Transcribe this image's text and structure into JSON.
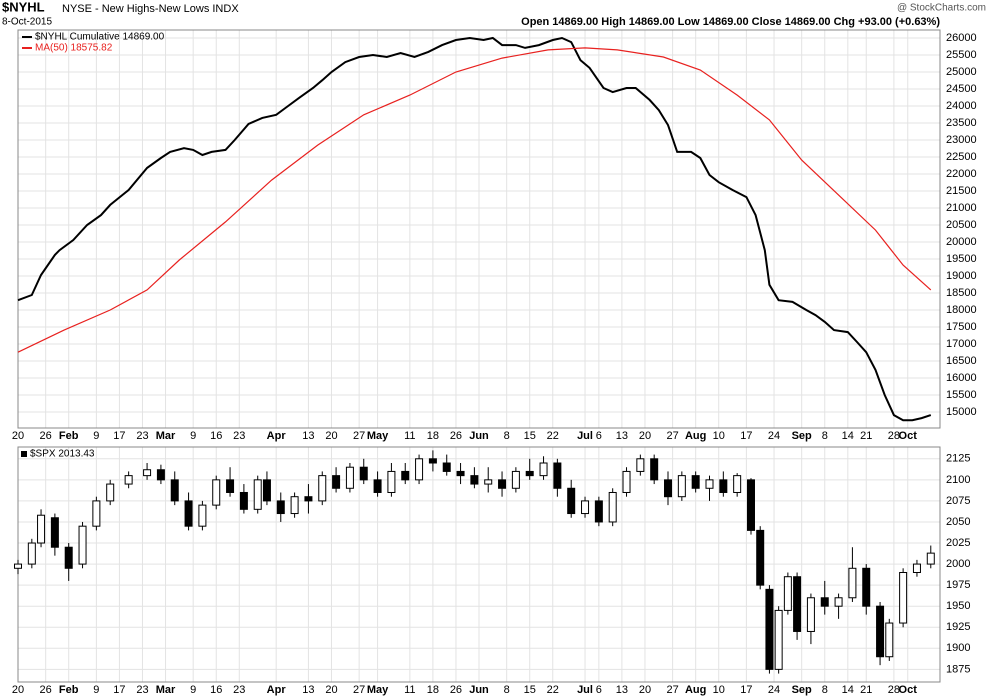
{
  "header": {
    "symbol": "$NYHL",
    "name": "NYSE - New Highs-New Lows INDX",
    "date": "8-Oct-2015",
    "quote": "Open 14869.00  High 14869.00  Low 14869.00  Close 14869.00  Chg +93.00 (+0.63%)",
    "credit": "@ StockCharts.com"
  },
  "chart_data": [
    {
      "type": "line",
      "xlim": [
        0,
        200
      ],
      "ylim": [
        14530,
        26235
      ],
      "grid": true,
      "yticks": [
        15000,
        15500,
        16000,
        16500,
        17000,
        17500,
        18000,
        18500,
        19000,
        19500,
        20000,
        20500,
        21000,
        21500,
        22000,
        22500,
        23000,
        23500,
        24000,
        24500,
        25000,
        25500,
        26000
      ],
      "xticks": [
        {
          "value": 0,
          "label": "20"
        },
        {
          "value": 6,
          "label": "26"
        },
        {
          "value": 11,
          "label": "Feb"
        },
        {
          "value": 17,
          "label": "9"
        },
        {
          "value": 22,
          "label": "17"
        },
        {
          "value": 27,
          "label": "23"
        },
        {
          "value": 32,
          "label": "Mar"
        },
        {
          "value": 38,
          "label": "9"
        },
        {
          "value": 43,
          "label": "16"
        },
        {
          "value": 48,
          "label": "23"
        },
        {
          "value": 56,
          "label": "Apr"
        },
        {
          "value": 63,
          "label": "13"
        },
        {
          "value": 68,
          "label": "20"
        },
        {
          "value": 74,
          "label": "27"
        },
        {
          "value": 78,
          "label": "May"
        },
        {
          "value": 85,
          "label": "11"
        },
        {
          "value": 90,
          "label": "18"
        },
        {
          "value": 95,
          "label": "26"
        },
        {
          "value": 100,
          "label": "Jun"
        },
        {
          "value": 106,
          "label": "8"
        },
        {
          "value": 111,
          "label": "15"
        },
        {
          "value": 116,
          "label": "22"
        },
        {
          "value": 123,
          "label": "Jul"
        },
        {
          "value": 126,
          "label": "6"
        },
        {
          "value": 131,
          "label": "13"
        },
        {
          "value": 136,
          "label": "20"
        },
        {
          "value": 142,
          "label": "27"
        },
        {
          "value": 147,
          "label": "Aug"
        },
        {
          "value": 152,
          "label": "10"
        },
        {
          "value": 158,
          "label": "17"
        },
        {
          "value": 164,
          "label": "24"
        },
        {
          "value": 170,
          "label": "Sep"
        },
        {
          "value": 175,
          "label": "8"
        },
        {
          "value": 180,
          "label": "14"
        },
        {
          "value": 184,
          "label": "21"
        },
        {
          "value": 190,
          "label": "28"
        },
        {
          "value": 193,
          "label": "Oct"
        }
      ],
      "series": [
        {
          "name": "$NYHL Cumulative 14869.00",
          "color": "#000000",
          "x": [
            0,
            3,
            5,
            8,
            9,
            12,
            15,
            18,
            20,
            24,
            28,
            31,
            33,
            36,
            38,
            40,
            42,
            45,
            47,
            50,
            53,
            56,
            58,
            61,
            64,
            66,
            68,
            71,
            74,
            77,
            80,
            83,
            86,
            89,
            92,
            95,
            98,
            101,
            103,
            105,
            108,
            110,
            113,
            116,
            118,
            120,
            122,
            124,
            127,
            129,
            132,
            134,
            137,
            139,
            141,
            143,
            146,
            148,
            150,
            152,
            155,
            158,
            160,
            162,
            163,
            165,
            168,
            171,
            173,
            175,
            177,
            180,
            182,
            184,
            186,
            188,
            190,
            192,
            194,
            196,
            198
          ],
          "values": [
            18290,
            18440,
            19030,
            19620,
            19760,
            20060,
            20500,
            20790,
            21090,
            21530,
            22180,
            22470,
            22650,
            22760,
            22710,
            22560,
            22650,
            22710,
            23000,
            23470,
            23650,
            23740,
            23940,
            24240,
            24530,
            24760,
            25000,
            25290,
            25440,
            25500,
            25440,
            25560,
            25440,
            25590,
            25790,
            25940,
            26000,
            25940,
            26000,
            25790,
            25790,
            25710,
            25790,
            25940,
            26000,
            25880,
            25350,
            25120,
            24530,
            24410,
            24530,
            24530,
            24180,
            23880,
            23440,
            22650,
            22650,
            22470,
            21970,
            21760,
            21530,
            21320,
            20790,
            19760,
            18740,
            18290,
            18240,
            18000,
            17850,
            17650,
            17410,
            17350,
            17060,
            16760,
            16240,
            15500,
            14910,
            14760,
            14760,
            14820,
            14910
          ]
        },
        {
          "name": "MA(50) 18575.82",
          "color": "#e8211f",
          "x": [
            0,
            10,
            20,
            28,
            35,
            45,
            55,
            65,
            75,
            85,
            95,
            105,
            115,
            123,
            130,
            140,
            148,
            156,
            163,
            170,
            178,
            186,
            192,
            198
          ],
          "values": [
            16760,
            17410,
            18000,
            18590,
            19470,
            20590,
            21820,
            22850,
            23740,
            24320,
            25000,
            25410,
            25650,
            25710,
            25650,
            25440,
            25060,
            24320,
            23590,
            22410,
            21380,
            20350,
            19320,
            18590
          ]
        }
      ]
    },
    {
      "type": "candlestick",
      "title": "$SPX 2013.43",
      "xlim": [
        0,
        200
      ],
      "ylim": [
        1860,
        2139
      ],
      "grid": true,
      "up_color": "#ffffff",
      "down_color": "#000000",
      "yticks": [
        1875,
        1900,
        1925,
        1950,
        1975,
        2000,
        2025,
        2050,
        2075,
        2100,
        2125
      ],
      "xticks": [
        {
          "value": 0,
          "label": "20"
        },
        {
          "value": 6,
          "label": "26"
        },
        {
          "value": 11,
          "label": "Feb"
        },
        {
          "value": 17,
          "label": "9"
        },
        {
          "value": 22,
          "label": "17"
        },
        {
          "value": 27,
          "label": "23"
        },
        {
          "value": 32,
          "label": "Mar"
        },
        {
          "value": 38,
          "label": "9"
        },
        {
          "value": 43,
          "label": "16"
        },
        {
          "value": 48,
          "label": "23"
        },
        {
          "value": 56,
          "label": "Apr"
        },
        {
          "value": 63,
          "label": "13"
        },
        {
          "value": 68,
          "label": "20"
        },
        {
          "value": 74,
          "label": "27"
        },
        {
          "value": 78,
          "label": "May"
        },
        {
          "value": 85,
          "label": "11"
        },
        {
          "value": 90,
          "label": "18"
        },
        {
          "value": 95,
          "label": "26"
        },
        {
          "value": 100,
          "label": "Jun"
        },
        {
          "value": 106,
          "label": "8"
        },
        {
          "value": 111,
          "label": "15"
        },
        {
          "value": 116,
          "label": "22"
        },
        {
          "value": 123,
          "label": "Jul"
        },
        {
          "value": 126,
          "label": "6"
        },
        {
          "value": 131,
          "label": "13"
        },
        {
          "value": 136,
          "label": "20"
        },
        {
          "value": 142,
          "label": "27"
        },
        {
          "value": 147,
          "label": "Aug"
        },
        {
          "value": 152,
          "label": "10"
        },
        {
          "value": 158,
          "label": "17"
        },
        {
          "value": 164,
          "label": "24"
        },
        {
          "value": 170,
          "label": "Sep"
        },
        {
          "value": 175,
          "label": "8"
        },
        {
          "value": 180,
          "label": "14"
        },
        {
          "value": 184,
          "label": "21"
        },
        {
          "value": 190,
          "label": "28"
        },
        {
          "value": 193,
          "label": "Oct"
        }
      ],
      "x": [
        0,
        3,
        5,
        8,
        11,
        14,
        17,
        20,
        24,
        28,
        31,
        34,
        37,
        40,
        43,
        46,
        49,
        52,
        54,
        57,
        60,
        63,
        66,
        69,
        72,
        75,
        78,
        81,
        84,
        87,
        90,
        93,
        96,
        99,
        102,
        105,
        108,
        111,
        114,
        117,
        120,
        123,
        126,
        129,
        132,
        135,
        138,
        141,
        144,
        147,
        150,
        153,
        156,
        159,
        161,
        163,
        165,
        167,
        169,
        172,
        175,
        178,
        181,
        184,
        187,
        189,
        192,
        195,
        198
      ],
      "open": [
        1995,
        2000,
        2025,
        2055,
        2020,
        2000,
        2045,
        2075,
        2095,
        2105,
        2112,
        2100,
        2075,
        2045,
        2070,
        2100,
        2085,
        2065,
        2100,
        2075,
        2060,
        2080,
        2075,
        2105,
        2090,
        2115,
        2100,
        2085,
        2110,
        2100,
        2125,
        2120,
        2110,
        2105,
        2095,
        2100,
        2090,
        2110,
        2105,
        2120,
        2090,
        2060,
        2075,
        2050,
        2085,
        2110,
        2125,
        2100,
        2080,
        2105,
        2090,
        2100,
        2085,
        2100,
        2040,
        1970,
        1875,
        1945,
        1985,
        1920,
        1960,
        1950,
        1960,
        1995,
        1950,
        1890,
        1930,
        1990,
        2000
      ],
      "high": [
        2005,
        2030,
        2065,
        2060,
        2025,
        2050,
        2080,
        2100,
        2110,
        2120,
        2118,
        2110,
        2085,
        2075,
        2105,
        2115,
        2095,
        2105,
        2110,
        2085,
        2085,
        2095,
        2110,
        2115,
        2120,
        2125,
        2110,
        2120,
        2120,
        2130,
        2135,
        2130,
        2120,
        2115,
        2115,
        2110,
        2115,
        2125,
        2128,
        2125,
        2100,
        2080,
        2080,
        2090,
        2115,
        2130,
        2130,
        2110,
        2110,
        2110,
        2105,
        2110,
        2108,
        2102,
        2045,
        1975,
        1950,
        1990,
        1990,
        1965,
        1980,
        1965,
        2020,
        2000,
        1955,
        1935,
        1995,
        2005,
        2022
      ],
      "low": [
        1988,
        1995,
        2020,
        2010,
        1980,
        1995,
        2040,
        2070,
        2090,
        2100,
        2095,
        2070,
        2040,
        2040,
        2065,
        2080,
        2060,
        2060,
        2070,
        2050,
        2055,
        2060,
        2070,
        2085,
        2085,
        2095,
        2080,
        2080,
        2095,
        2095,
        2110,
        2105,
        2095,
        2090,
        2085,
        2080,
        2085,
        2100,
        2100,
        2080,
        2055,
        2055,
        2045,
        2045,
        2080,
        2105,
        2095,
        2070,
        2075,
        2085,
        2075,
        2080,
        2080,
        2035,
        1970,
        1870,
        1870,
        1940,
        1910,
        1905,
        1940,
        1935,
        1955,
        1940,
        1880,
        1885,
        1925,
        1985,
        1995
      ],
      "close": [
        2000,
        2025,
        2058,
        2020,
        1995,
        2045,
        2075,
        2095,
        2105,
        2112,
        2100,
        2075,
        2045,
        2070,
        2100,
        2085,
        2065,
        2100,
        2075,
        2060,
        2080,
        2075,
        2105,
        2090,
        2115,
        2100,
        2085,
        2110,
        2100,
        2125,
        2120,
        2110,
        2105,
        2095,
        2100,
        2090,
        2110,
        2105,
        2120,
        2090,
        2060,
        2075,
        2050,
        2085,
        2110,
        2125,
        2100,
        2080,
        2105,
        2090,
        2100,
        2085,
        2105,
        2040,
        1975,
        1875,
        1945,
        1985,
        1920,
        1960,
        1950,
        1960,
        1995,
        1950,
        1890,
        1930,
        1990,
        2000,
        2013
      ]
    }
  ]
}
